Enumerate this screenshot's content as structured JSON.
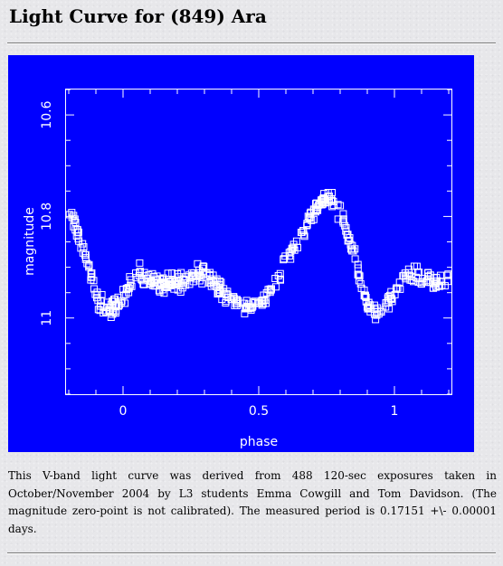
{
  "page": {
    "title": "Light Curve for (849) Ara",
    "caption": "This V-band light curve was derived from 488 120-sec exposures taken in October/November 2004 by L3 students Emma Cowgill and Tom Davidson. (The magnitude zero-point is not calibrated). The measured period is 0.17151 +\\- 0.00001 days."
  },
  "colors": {
    "figure_background": "#0000ff",
    "foreground": "#ffffff"
  },
  "chart_data": {
    "type": "scatter",
    "title": "",
    "xlabel": "phase",
    "ylabel": "magnitude",
    "xlim": [
      -0.21,
      1.21
    ],
    "ylim": [
      11.15,
      10.55
    ],
    "y_inverted": true,
    "x_ticks": [
      0,
      0.5,
      1
    ],
    "x_tick_labels": [
      "0",
      "0.5",
      "1"
    ],
    "y_ticks": [
      10.6,
      10.8,
      11
    ],
    "y_tick_labels": [
      "10.6",
      "10.8",
      "11"
    ],
    "grid": false,
    "marker": "open-square",
    "curve_nodes": {
      "phase": [
        -0.2,
        -0.17,
        -0.13,
        -0.09,
        -0.05,
        0.0,
        0.05,
        0.1,
        0.15,
        0.2,
        0.25,
        0.3,
        0.35,
        0.4,
        0.45,
        0.5,
        0.55,
        0.6,
        0.65,
        0.7,
        0.75,
        0.78,
        0.81,
        0.85,
        0.9,
        0.95,
        1.0,
        1.05,
        1.1,
        1.15,
        1.2
      ],
      "magnitude": [
        10.79,
        10.82,
        10.89,
        10.97,
        10.99,
        10.96,
        10.91,
        10.93,
        10.93,
        10.93,
        10.92,
        10.91,
        10.94,
        10.96,
        10.98,
        10.98,
        10.94,
        10.89,
        10.84,
        10.79,
        10.76,
        10.77,
        10.8,
        10.87,
        10.98,
        10.99,
        10.95,
        10.91,
        10.92,
        10.93,
        10.93
      ]
    },
    "scatter_mag": 0.012,
    "n_points": 488
  }
}
